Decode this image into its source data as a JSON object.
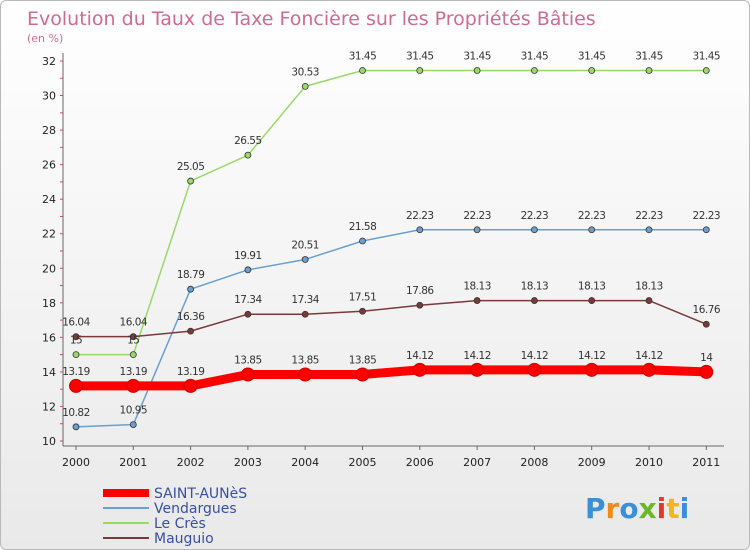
{
  "chart_data": {
    "type": "line",
    "title": "Evolution du Taux de Taxe Foncière sur les Propriétés Bâties",
    "subtitle": "(en %)",
    "x": [
      "2000",
      "2001",
      "2002",
      "2003",
      "2004",
      "2005",
      "2006",
      "2007",
      "2008",
      "2009",
      "2010",
      "2011"
    ],
    "ylim": [
      10,
      32
    ],
    "yticks": [
      "10",
      "12",
      "14",
      "16",
      "18",
      "20",
      "22",
      "24",
      "26",
      "28",
      "30",
      "32"
    ],
    "grid": false,
    "legend_position": "bottom-left",
    "series": [
      {
        "name": "SAINT-AUNèS",
        "color": "#ff0000",
        "values": [
          13.19,
          13.19,
          13.19,
          13.85,
          13.85,
          13.85,
          14.12,
          14.12,
          14.12,
          14.12,
          14.12,
          14
        ],
        "labels": [
          "13.19",
          "13.19",
          "13.19",
          "13.85",
          "13.85",
          "13.85",
          "14.12",
          "14.12",
          "14.12",
          "14.12",
          "14.12",
          "14"
        ]
      },
      {
        "name": "Vendargues",
        "color": "#6a9fd0",
        "values": [
          10.82,
          10.95,
          18.79,
          19.91,
          20.51,
          21.58,
          22.23,
          22.23,
          22.23,
          22.23,
          22.23,
          22.23
        ],
        "labels": [
          "10.82",
          "10.95",
          "18.79",
          "19.91",
          "20.51",
          "21.58",
          "22.23",
          "22.23",
          "22.23",
          "22.23",
          "22.23",
          "22.23"
        ]
      },
      {
        "name": "Le Crès",
        "color": "#9ad86a",
        "values": [
          15,
          15,
          25.05,
          26.55,
          30.53,
          31.45,
          31.45,
          31.45,
          31.45,
          31.45,
          31.45,
          31.45
        ],
        "labels": [
          "15",
          "15",
          "25.05",
          "26.55",
          "30.53",
          "31.45",
          "31.45",
          "31.45",
          "31.45",
          "31.45",
          "31.45",
          "31.45"
        ]
      },
      {
        "name": "Mauguio",
        "color": "#7a3a3a",
        "values": [
          16.04,
          16.04,
          16.36,
          17.34,
          17.34,
          17.51,
          17.86,
          18.13,
          18.13,
          18.13,
          18.13,
          16.76
        ],
        "labels": [
          "16.04",
          "16.04",
          "16.36",
          "17.34",
          "17.34",
          "17.51",
          "17.86",
          "18.13",
          "18.13",
          "18.13",
          "18.13",
          "16.76"
        ]
      }
    ]
  },
  "brand": {
    "text": "Proxiti"
  }
}
